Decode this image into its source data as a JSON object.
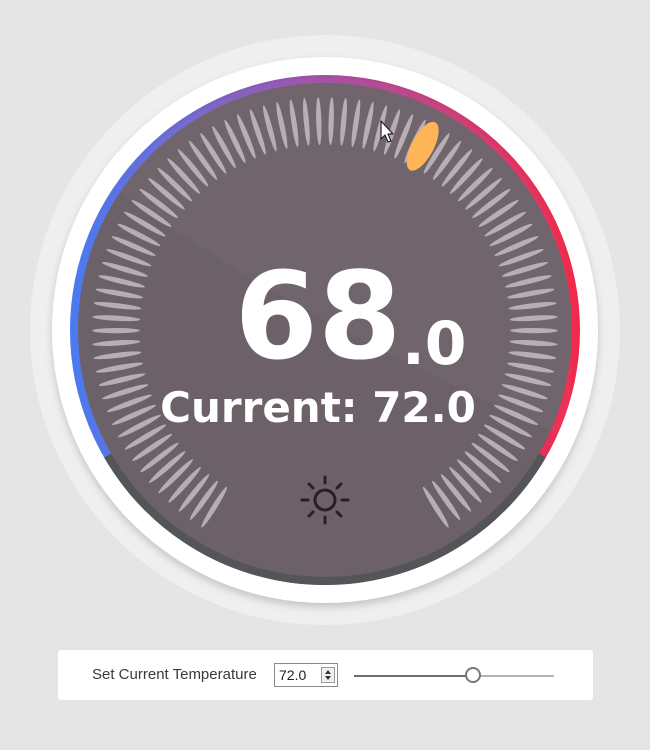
{
  "thermostat": {
    "target_whole": "68",
    "target_decimal": ".0",
    "current_label": "Current: 72.0",
    "target_value": 68.0,
    "current_value": 72.0,
    "mode_icon": "sun-icon",
    "colors": {
      "cool": "#4a7bf0",
      "mid": "#a24ea3",
      "heat": "#f2294a",
      "dial_face": "#6c6169",
      "tick": "#c4bcc2",
      "indicator": "#ffb457",
      "bottom_arc": "#535558"
    }
  },
  "controls": {
    "label": "Set Current Temperature",
    "value": "72.0",
    "slider_fraction": 0.6
  }
}
